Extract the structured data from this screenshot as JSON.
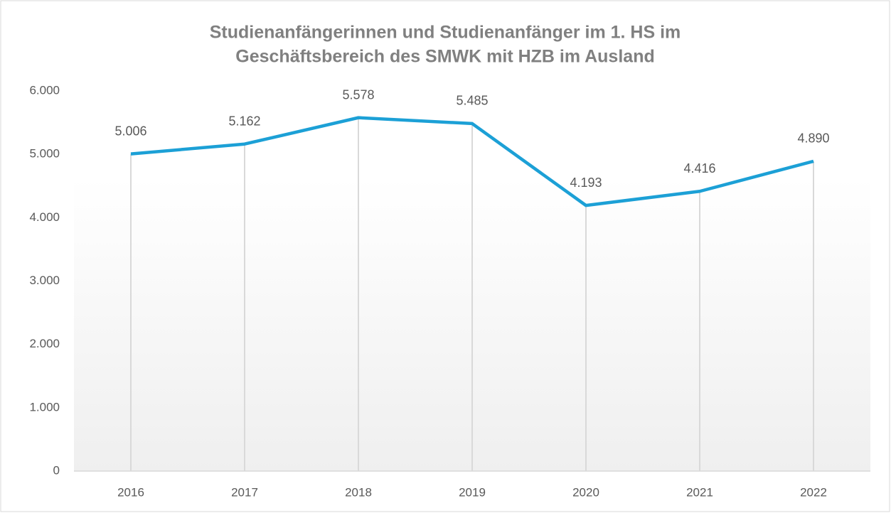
{
  "chart_data": {
    "type": "line",
    "title": [
      "Studienanfängerinnen und Studienanfänger im 1. HS im",
      "Geschäftsbereich des SMWK mit HZB im Ausland"
    ],
    "categories": [
      "2016",
      "2017",
      "2018",
      "2019",
      "2020",
      "2021",
      "2022"
    ],
    "values": [
      5006,
      5162,
      5578,
      5485,
      4193,
      4416,
      4890
    ],
    "value_labels": [
      "5.006",
      "5.162",
      "5.578",
      "5.485",
      "4.193",
      "4.416",
      "4.890"
    ],
    "color": "#1ca0d6",
    "ylim": [
      0,
      6000
    ],
    "yticks": [
      0,
      {
        "value": 1000,
        "label": "1.000"
      },
      {
        "value": 2000,
        "label": "2.000"
      },
      {
        "value": 3000,
        "label": "3.000"
      },
      {
        "value": 4000,
        "label": "4.000"
      },
      {
        "value": 5000,
        "label": "5.000"
      },
      {
        "value": 6000,
        "label": "6.000"
      }
    ],
    "drop_lines": true
  }
}
